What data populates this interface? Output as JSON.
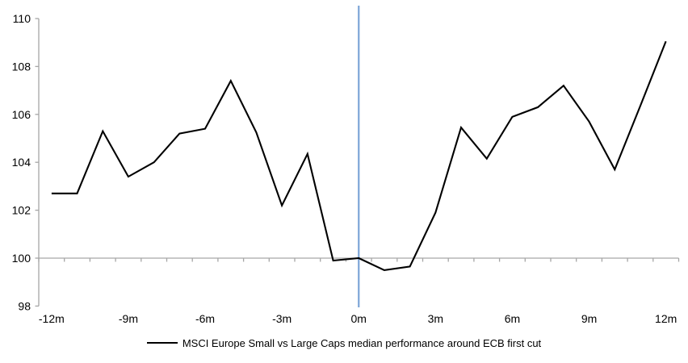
{
  "chart_data": {
    "type": "line",
    "title": "",
    "xlabel": "",
    "ylabel": "",
    "x": [
      -12,
      -11,
      -10,
      -9,
      -8,
      -7,
      -6,
      -5,
      -4,
      -3,
      -2,
      -1,
      0,
      1,
      2,
      3,
      4,
      5,
      6,
      7,
      8,
      9,
      10,
      11,
      12
    ],
    "series": [
      {
        "name": "MSCI Europe Small vs Large Caps median performance around ECB first cut",
        "color": "#000000",
        "values": [
          102.7,
          102.7,
          105.3,
          103.4,
          104.0,
          105.2,
          105.4,
          107.4,
          105.25,
          102.2,
          104.35,
          99.9,
          100.0,
          99.5,
          99.65,
          101.9,
          105.45,
          104.15,
          105.9,
          106.3,
          107.2,
          105.7,
          103.7,
          106.35,
          109.05
        ]
      }
    ],
    "y_ticks": [
      98,
      100,
      102,
      104,
      106,
      108,
      110
    ],
    "y_tick_labels": [
      "98",
      "100",
      "102",
      "104",
      "106",
      "108",
      "110"
    ],
    "ylim": [
      98,
      110
    ],
    "x_tick_labels": [
      {
        "month": -12,
        "label": "-12m"
      },
      {
        "month": -9,
        "label": "-9m"
      },
      {
        "month": -6,
        "label": "-6m"
      },
      {
        "month": -3,
        "label": "-3m"
      },
      {
        "month": 0,
        "label": "0m"
      },
      {
        "month": 3,
        "label": "3m"
      },
      {
        "month": 6,
        "label": "6m"
      },
      {
        "month": 9,
        "label": "9m"
      },
      {
        "month": 12,
        "label": "12m"
      }
    ],
    "event_line": {
      "month": 0,
      "color": "#7CA5D7"
    },
    "axis_cross_y": 100,
    "grid": "off",
    "legend_position": "bottom"
  },
  "colors": {
    "axis": "#A6A6A6",
    "background": "#ffffff",
    "text": "#000000"
  }
}
